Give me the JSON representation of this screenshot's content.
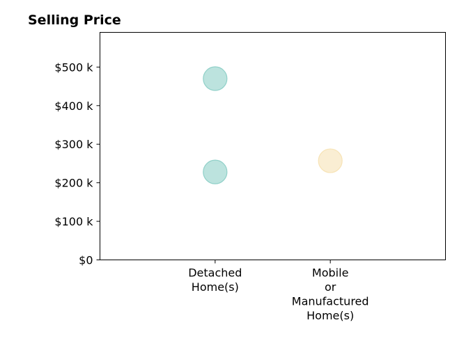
{
  "chart_data": {
    "type": "scatter",
    "title": "Selling Price",
    "xlabel": "",
    "ylabel": "",
    "categories": [
      [
        "Detached",
        "Home(s)"
      ],
      [
        "Mobile",
        "or",
        "Manufactured",
        "Home(s)"
      ]
    ],
    "ylim": [
      0,
      590000
    ],
    "yticks": [
      0,
      100000,
      200000,
      300000,
      400000,
      500000
    ],
    "ytick_labels": [
      "$0",
      "$100 k",
      "$200 k",
      "$300 k",
      "$400 k",
      "$500 k"
    ],
    "grid": false,
    "points": [
      {
        "category": 0,
        "value": 470000,
        "color": "#8fd0c8"
      },
      {
        "category": 0,
        "value": 228000,
        "color": "#8fd0c8"
      },
      {
        "category": 1,
        "value": 257000,
        "color": "#f7e3b5"
      }
    ]
  }
}
